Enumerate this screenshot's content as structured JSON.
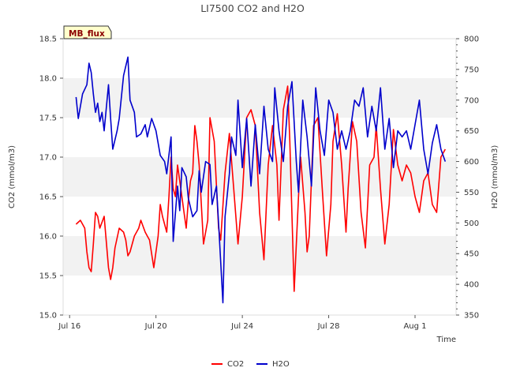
{
  "chart_data": {
    "type": "line",
    "title": "LI7500 CO2 and H2O",
    "badge": "MB_flux",
    "xlabel": "Time",
    "ylabel": "CO2 (mmol/m3)",
    "y2label": "H2O (mmol/m3)",
    "xlim": [
      -0.3,
      17.9
    ],
    "ylim": [
      15.0,
      18.5
    ],
    "y2lim": [
      350,
      800
    ],
    "x_origin_label": "Jul 16",
    "x_ticks": [
      0,
      4,
      8,
      12,
      16
    ],
    "x_tick_labels": [
      "Jul 16",
      "Jul 20",
      "Jul 24",
      "Jul 28",
      "Aug 1"
    ],
    "y_ticks": [
      15.0,
      15.5,
      16.0,
      16.5,
      17.0,
      17.5,
      18.0,
      18.5
    ],
    "y_tick_labels": [
      "15.0",
      "15.5",
      "16.0",
      "16.5",
      "17.0",
      "17.5",
      "18.0",
      "18.5"
    ],
    "y2_ticks": [
      350,
      400,
      450,
      500,
      550,
      600,
      650,
      700,
      750,
      800
    ],
    "y2_tick_labels": [
      "350",
      "400",
      "450",
      "500",
      "550",
      "600",
      "650",
      "700",
      "750",
      "800"
    ],
    "grid": "horizontal bands",
    "legend_position": "bottom-center",
    "series": [
      {
        "name": "CO2",
        "axis": "left",
        "color": "#ff0000",
        "x": [
          0.3,
          0.5,
          0.7,
          0.8,
          0.9,
          1.0,
          1.1,
          1.2,
          1.3,
          1.4,
          1.6,
          1.8,
          1.9,
          2.0,
          2.1,
          2.3,
          2.5,
          2.6,
          2.7,
          2.8,
          3.0,
          3.2,
          3.3,
          3.5,
          3.6,
          3.7,
          3.9,
          4.1,
          4.2,
          4.3,
          4.5,
          4.6,
          4.7,
          4.8,
          4.9,
          5.0,
          5.2,
          5.3,
          5.4,
          5.5,
          5.6,
          5.7,
          5.8,
          5.9,
          6.0,
          6.2,
          6.4,
          6.5,
          6.7,
          6.9,
          7.0,
          7.2,
          7.4,
          7.6,
          7.8,
          8.0,
          8.2,
          8.4,
          8.6,
          8.8,
          9.0,
          9.2,
          9.4,
          9.6,
          9.7,
          9.9,
          10.1,
          10.2,
          10.4,
          10.6,
          10.7,
          10.9,
          11.0,
          11.1,
          11.3,
          11.5,
          11.7,
          11.9,
          12.1,
          12.2,
          12.4,
          12.6,
          12.8,
          12.9,
          13.1,
          13.3,
          13.5,
          13.7,
          13.9,
          14.1,
          14.2,
          14.4,
          14.6,
          14.8,
          15.0,
          15.2,
          15.4,
          15.6,
          15.8,
          16.0,
          16.2,
          16.4,
          16.6,
          16.8,
          17.0,
          17.2,
          17.4
        ],
        "y": [
          16.15,
          16.2,
          16.1,
          15.8,
          15.6,
          15.55,
          15.9,
          16.3,
          16.25,
          16.1,
          16.25,
          15.6,
          15.45,
          15.6,
          15.85,
          16.1,
          16.05,
          15.95,
          15.75,
          15.8,
          16.0,
          16.1,
          16.2,
          16.05,
          16.0,
          15.95,
          15.6,
          16.0,
          16.4,
          16.25,
          16.05,
          16.5,
          17.0,
          16.6,
          16.5,
          16.9,
          16.5,
          16.3,
          16.1,
          16.45,
          16.7,
          16.8,
          17.4,
          17.2,
          16.9,
          15.9,
          16.2,
          17.5,
          17.2,
          16.1,
          15.95,
          16.8,
          17.3,
          16.6,
          15.9,
          16.5,
          17.5,
          17.6,
          17.4,
          16.3,
          15.7,
          16.9,
          17.4,
          16.9,
          16.2,
          17.6,
          17.9,
          17.2,
          15.3,
          16.5,
          17.0,
          16.3,
          15.8,
          16.0,
          17.4,
          17.5,
          16.6,
          15.75,
          16.4,
          17.2,
          17.55,
          16.9,
          16.05,
          16.6,
          17.45,
          17.2,
          16.3,
          15.85,
          16.9,
          17.0,
          17.4,
          16.6,
          15.9,
          16.4,
          17.35,
          16.9,
          16.7,
          16.9,
          16.8,
          16.5,
          16.3,
          16.7,
          16.8,
          16.4,
          16.3,
          17.0,
          17.1
        ]
      },
      {
        "name": "H2O",
        "axis": "right",
        "color": "#0000cc",
        "x": [
          0.3,
          0.4,
          0.6,
          0.8,
          0.9,
          1.0,
          1.1,
          1.2,
          1.3,
          1.4,
          1.5,
          1.6,
          1.8,
          1.9,
          2.0,
          2.2,
          2.3,
          2.5,
          2.7,
          2.8,
          3.0,
          3.1,
          3.3,
          3.5,
          3.6,
          3.8,
          4.0,
          4.2,
          4.4,
          4.5,
          4.7,
          4.8,
          5.0,
          5.1,
          5.2,
          5.4,
          5.5,
          5.7,
          5.9,
          6.0,
          6.1,
          6.3,
          6.5,
          6.6,
          6.8,
          6.9,
          7.1,
          7.2,
          7.4,
          7.5,
          7.7,
          7.8,
          8.0,
          8.2,
          8.4,
          8.6,
          8.8,
          9.0,
          9.2,
          9.4,
          9.5,
          9.7,
          9.9,
          10.1,
          10.3,
          10.5,
          10.6,
          10.8,
          11.0,
          11.2,
          11.4,
          11.6,
          11.8,
          12.0,
          12.2,
          12.4,
          12.6,
          12.8,
          13.0,
          13.2,
          13.4,
          13.6,
          13.8,
          14.0,
          14.2,
          14.4,
          14.6,
          14.8,
          15.0,
          15.2,
          15.4,
          15.6,
          15.8,
          16.0,
          16.2,
          16.4,
          16.6,
          16.8,
          17.0,
          17.2,
          17.4
        ],
        "y": [
          705,
          670,
          710,
          725,
          760,
          745,
          710,
          680,
          695,
          665,
          680,
          650,
          725,
          670,
          620,
          650,
          670,
          740,
          770,
          700,
          680,
          640,
          645,
          660,
          640,
          670,
          650,
          610,
          600,
          580,
          640,
          470,
          560,
          520,
          590,
          575,
          540,
          510,
          520,
          585,
          550,
          600,
          595,
          530,
          560,
          500,
          370,
          510,
          580,
          640,
          610,
          700,
          590,
          670,
          560,
          660,
          580,
          690,
          620,
          600,
          720,
          650,
          600,
          690,
          730,
          600,
          550,
          700,
          640,
          560,
          720,
          650,
          610,
          700,
          680,
          620,
          650,
          620,
          650,
          700,
          690,
          720,
          640,
          690,
          650,
          720,
          620,
          670,
          590,
          650,
          640,
          650,
          620,
          660,
          700,
          620,
          580,
          630,
          660,
          620,
          600
        ]
      }
    ]
  }
}
